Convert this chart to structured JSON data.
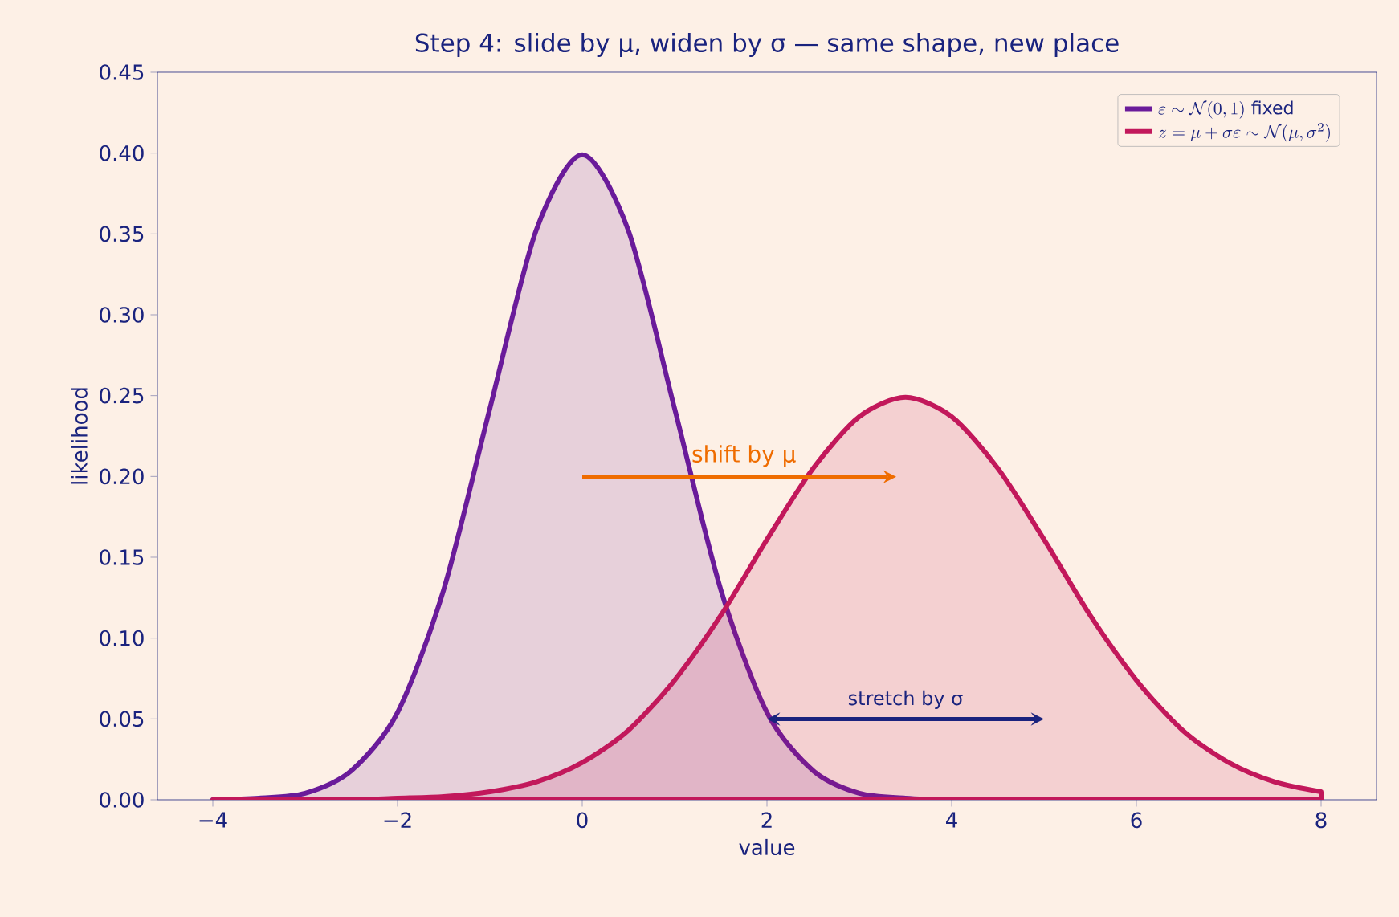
{
  "chart_data": {
    "type": "area",
    "title": "Step 4: slide by μ, widen by σ — same shape, new place",
    "xlabel": "value",
    "ylabel": "likelihood",
    "x": [
      -4,
      -3.5,
      -3,
      -2.5,
      -2,
      -1.5,
      -1,
      -0.5,
      0,
      0.5,
      1,
      1.5,
      2,
      2.5,
      3,
      3.5,
      4,
      4.5,
      5,
      5.5,
      6,
      6.5,
      7,
      7.5,
      8
    ],
    "series": [
      {
        "name": "\\varepsilon \\sim \\mathcal{N}(0,1)\\ \\textsf{fixed}",
        "color": "#6a1b9a",
        "values": [
          0.0,
          0.001,
          0.004,
          0.018,
          0.054,
          0.13,
          0.242,
          0.352,
          0.399,
          0.352,
          0.242,
          0.13,
          0.054,
          0.018,
          0.004,
          0.001,
          0.0,
          0,
          0,
          0,
          0,
          0,
          0,
          0,
          0
        ]
      },
      {
        "name": "z=\\mu+\\sigma\\varepsilon\\sim\\mathcal{N}(\\mu,\\sigma^{2})",
        "color": "#c2185b",
        "values": [
          0.0,
          0.0,
          0.0,
          0.0,
          0.001,
          0.002,
          0.005,
          0.011,
          0.023,
          0.043,
          0.074,
          0.114,
          0.161,
          0.205,
          0.237,
          0.249,
          0.237,
          0.205,
          0.161,
          0.114,
          0.074,
          0.043,
          0.023,
          0.011,
          0.005
        ]
      }
    ],
    "annotations": [
      "shift by μ",
      "stretch by σ"
    ],
    "xlim": [
      -4.6,
      8.6
    ],
    "ylim": [
      0,
      0.45
    ],
    "xticks": [
      {
        "value": -4,
        "label": "−4"
      },
      {
        "value": -2,
        "label": "−2"
      },
      0,
      2,
      4,
      6,
      8
    ],
    "yticks": [
      {
        "value": 0,
        "label": "0.00"
      },
      {
        "value": 0.05,
        "label": "0.05"
      },
      {
        "value": 0.1,
        "label": "0.10"
      },
      {
        "value": 0.15,
        "label": "0.15"
      },
      {
        "value": 0.2,
        "label": "0.20"
      },
      {
        "value": 0.25,
        "label": "0.25"
      },
      {
        "value": 0.3,
        "label": "0.30"
      },
      {
        "value": 0.35,
        "label": "0.35"
      },
      {
        "value": 0.4,
        "label": "0.40"
      },
      {
        "value": 0.45,
        "label": "0.45"
      }
    ],
    "legend": "top right",
    "grid": false
  }
}
